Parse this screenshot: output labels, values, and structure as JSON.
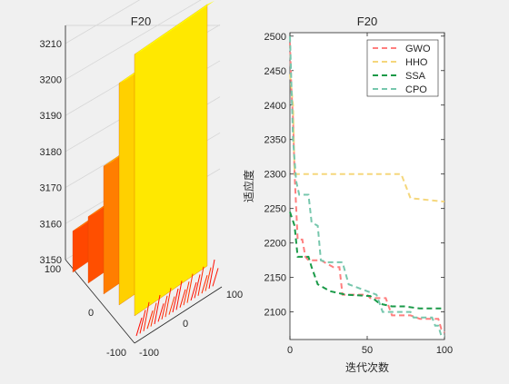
{
  "chart_data": [
    {
      "type": "surface",
      "title": "F20",
      "x_ticks": [
        "100",
        "0",
        "-100"
      ],
      "y_ticks": [
        "-100",
        "0",
        "100"
      ],
      "z_ticks": [
        "3150",
        "3160",
        "3170",
        "3180",
        "3190",
        "3200",
        "3210"
      ],
      "zlim": [
        3150,
        3215
      ],
      "colormap": [
        "#ff0000",
        "#ff8000",
        "#ffff00"
      ],
      "grid": true,
      "ridges": [
        3168,
        3170,
        3182,
        3203,
        3209
      ]
    },
    {
      "type": "line",
      "title": "F20",
      "xlabel": "迭代次数",
      "ylabel": "适应度",
      "xlim": [
        0,
        100
      ],
      "ylim": [
        2060,
        2505
      ],
      "x_ticks": [
        "0",
        "50",
        "100"
      ],
      "y_ticks": [
        "2100",
        "2150",
        "2200",
        "2250",
        "2300",
        "2350",
        "2400",
        "2450",
        "2500"
      ],
      "legend_position": "top-right",
      "series": [
        {
          "name": "GWO",
          "color": "#ff7f7f",
          "points": [
            [
              0,
              2490
            ],
            [
              1,
              2420
            ],
            [
              2,
              2380
            ],
            [
              3,
              2300
            ],
            [
              5,
              2205
            ],
            [
              8,
              2205
            ],
            [
              10,
              2180
            ],
            [
              12,
              2175
            ],
            [
              20,
              2175
            ],
            [
              28,
              2165
            ],
            [
              32,
              2165
            ],
            [
              34,
              2125
            ],
            [
              50,
              2125
            ],
            [
              52,
              2120
            ],
            [
              62,
              2120
            ],
            [
              66,
              2095
            ],
            [
              78,
              2095
            ],
            [
              84,
              2090
            ],
            [
              96,
              2090
            ],
            [
              98,
              2075
            ],
            [
              100,
              2070
            ]
          ]
        },
        {
          "name": "HHO",
          "color": "#f5d77c",
          "points": [
            [
              0,
              2445
            ],
            [
              2,
              2400
            ],
            [
              3,
              2300
            ],
            [
              5,
              2300
            ],
            [
              15,
              2300
            ],
            [
              72,
              2300
            ],
            [
              78,
              2265
            ],
            [
              100,
              2260
            ]
          ]
        },
        {
          "name": "SSA",
          "color": "#1a9a48",
          "points": [
            [
              0,
              2245
            ],
            [
              3,
              2225
            ],
            [
              5,
              2180
            ],
            [
              12,
              2180
            ],
            [
              14,
              2165
            ],
            [
              18,
              2140
            ],
            [
              26,
              2130
            ],
            [
              36,
              2125
            ],
            [
              52,
              2123
            ],
            [
              58,
              2112
            ],
            [
              66,
              2108
            ],
            [
              74,
              2108
            ],
            [
              84,
              2105
            ],
            [
              100,
              2105
            ]
          ]
        },
        {
          "name": "CPO",
          "color": "#77c7ad",
          "points": [
            [
              0,
              2500
            ],
            [
              2,
              2350
            ],
            [
              4,
              2290
            ],
            [
              6,
              2270
            ],
            [
              8,
              2270
            ],
            [
              12,
              2270
            ],
            [
              14,
              2230
            ],
            [
              18,
              2225
            ],
            [
              20,
              2175
            ],
            [
              24,
              2172
            ],
            [
              34,
              2172
            ],
            [
              38,
              2140
            ],
            [
              50,
              2130
            ],
            [
              56,
              2125
            ],
            [
              60,
              2100
            ],
            [
              78,
              2100
            ],
            [
              80,
              2092
            ],
            [
              92,
              2092
            ],
            [
              94,
              2080
            ],
            [
              96,
              2080
            ],
            [
              98,
              2065
            ],
            [
              100,
              2065
            ]
          ]
        }
      ]
    }
  ]
}
